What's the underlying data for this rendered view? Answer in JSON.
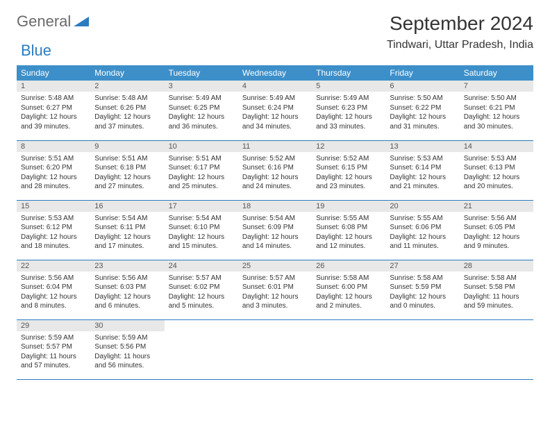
{
  "brand": {
    "part1": "General",
    "part2": "Blue"
  },
  "title": "September 2024",
  "location": "Tindwari, Uttar Pradesh, India",
  "weekdays": [
    "Sunday",
    "Monday",
    "Tuesday",
    "Wednesday",
    "Thursday",
    "Friday",
    "Saturday"
  ],
  "header_bg": "#3d8fc9",
  "daynum_bg": "#e8e8e8",
  "border_color": "#2b7bbf",
  "days": [
    {
      "n": 1,
      "sr": "5:48 AM",
      "ss": "6:27 PM",
      "dl": "12 hours and 39 minutes."
    },
    {
      "n": 2,
      "sr": "5:48 AM",
      "ss": "6:26 PM",
      "dl": "12 hours and 37 minutes."
    },
    {
      "n": 3,
      "sr": "5:49 AM",
      "ss": "6:25 PM",
      "dl": "12 hours and 36 minutes."
    },
    {
      "n": 4,
      "sr": "5:49 AM",
      "ss": "6:24 PM",
      "dl": "12 hours and 34 minutes."
    },
    {
      "n": 5,
      "sr": "5:49 AM",
      "ss": "6:23 PM",
      "dl": "12 hours and 33 minutes."
    },
    {
      "n": 6,
      "sr": "5:50 AM",
      "ss": "6:22 PM",
      "dl": "12 hours and 31 minutes."
    },
    {
      "n": 7,
      "sr": "5:50 AM",
      "ss": "6:21 PM",
      "dl": "12 hours and 30 minutes."
    },
    {
      "n": 8,
      "sr": "5:51 AM",
      "ss": "6:20 PM",
      "dl": "12 hours and 28 minutes."
    },
    {
      "n": 9,
      "sr": "5:51 AM",
      "ss": "6:18 PM",
      "dl": "12 hours and 27 minutes."
    },
    {
      "n": 10,
      "sr": "5:51 AM",
      "ss": "6:17 PM",
      "dl": "12 hours and 25 minutes."
    },
    {
      "n": 11,
      "sr": "5:52 AM",
      "ss": "6:16 PM",
      "dl": "12 hours and 24 minutes."
    },
    {
      "n": 12,
      "sr": "5:52 AM",
      "ss": "6:15 PM",
      "dl": "12 hours and 23 minutes."
    },
    {
      "n": 13,
      "sr": "5:53 AM",
      "ss": "6:14 PM",
      "dl": "12 hours and 21 minutes."
    },
    {
      "n": 14,
      "sr": "5:53 AM",
      "ss": "6:13 PM",
      "dl": "12 hours and 20 minutes."
    },
    {
      "n": 15,
      "sr": "5:53 AM",
      "ss": "6:12 PM",
      "dl": "12 hours and 18 minutes."
    },
    {
      "n": 16,
      "sr": "5:54 AM",
      "ss": "6:11 PM",
      "dl": "12 hours and 17 minutes."
    },
    {
      "n": 17,
      "sr": "5:54 AM",
      "ss": "6:10 PM",
      "dl": "12 hours and 15 minutes."
    },
    {
      "n": 18,
      "sr": "5:54 AM",
      "ss": "6:09 PM",
      "dl": "12 hours and 14 minutes."
    },
    {
      "n": 19,
      "sr": "5:55 AM",
      "ss": "6:08 PM",
      "dl": "12 hours and 12 minutes."
    },
    {
      "n": 20,
      "sr": "5:55 AM",
      "ss": "6:06 PM",
      "dl": "12 hours and 11 minutes."
    },
    {
      "n": 21,
      "sr": "5:56 AM",
      "ss": "6:05 PM",
      "dl": "12 hours and 9 minutes."
    },
    {
      "n": 22,
      "sr": "5:56 AM",
      "ss": "6:04 PM",
      "dl": "12 hours and 8 minutes."
    },
    {
      "n": 23,
      "sr": "5:56 AM",
      "ss": "6:03 PM",
      "dl": "12 hours and 6 minutes."
    },
    {
      "n": 24,
      "sr": "5:57 AM",
      "ss": "6:02 PM",
      "dl": "12 hours and 5 minutes."
    },
    {
      "n": 25,
      "sr": "5:57 AM",
      "ss": "6:01 PM",
      "dl": "12 hours and 3 minutes."
    },
    {
      "n": 26,
      "sr": "5:58 AM",
      "ss": "6:00 PM",
      "dl": "12 hours and 2 minutes."
    },
    {
      "n": 27,
      "sr": "5:58 AM",
      "ss": "5:59 PM",
      "dl": "12 hours and 0 minutes."
    },
    {
      "n": 28,
      "sr": "5:58 AM",
      "ss": "5:58 PM",
      "dl": "11 hours and 59 minutes."
    },
    {
      "n": 29,
      "sr": "5:59 AM",
      "ss": "5:57 PM",
      "dl": "11 hours and 57 minutes."
    },
    {
      "n": 30,
      "sr": "5:59 AM",
      "ss": "5:56 PM",
      "dl": "11 hours and 56 minutes."
    }
  ],
  "labels": {
    "sunrise": "Sunrise:",
    "sunset": "Sunset:",
    "daylight": "Daylight:"
  }
}
